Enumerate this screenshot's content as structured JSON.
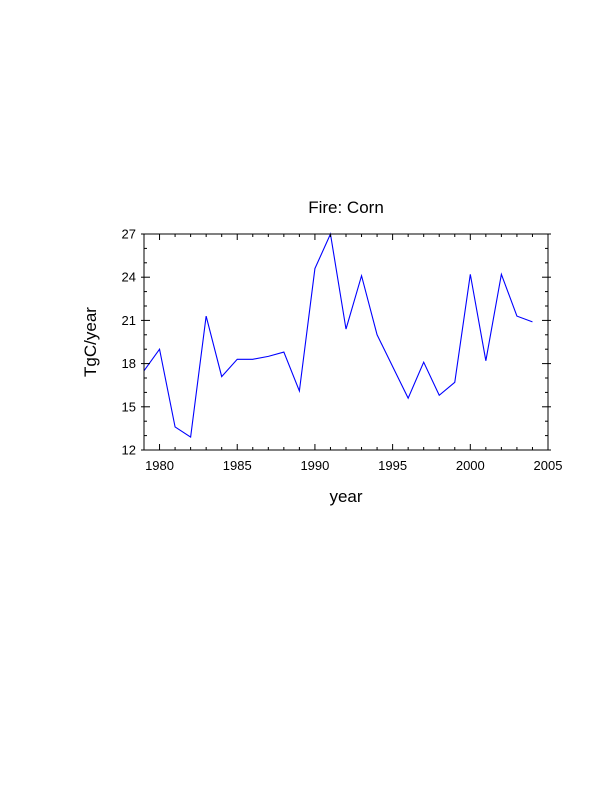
{
  "chart_data": {
    "type": "line",
    "title": "Fire: Corn",
    "xlabel": "year",
    "ylabel": "TgC/year",
    "xlim": [
      1979,
      2005
    ],
    "ylim": [
      12,
      27
    ],
    "x_ticks": [
      1980,
      1985,
      1990,
      1995,
      2000,
      2005
    ],
    "y_ticks": [
      12,
      15,
      18,
      21,
      24,
      27
    ],
    "grid": false,
    "series": [
      {
        "color": "#0000ff",
        "x": [
          1979,
          1980,
          1981,
          1982,
          1983,
          1984,
          1985,
          1986,
          1987,
          1988,
          1989,
          1990,
          1991,
          1992,
          1993,
          1994,
          1995,
          1996,
          1997,
          1998,
          1999,
          2000,
          2001,
          2002,
          2003,
          2004
        ],
        "values": [
          17.5,
          19.0,
          13.6,
          12.9,
          21.3,
          17.1,
          18.3,
          18.3,
          18.5,
          18.8,
          16.1,
          24.6,
          27.0,
          20.4,
          24.1,
          20.0,
          17.8,
          15.6,
          18.1,
          15.8,
          16.7,
          24.2,
          18.2,
          24.2,
          21.3,
          20.9
        ]
      }
    ]
  }
}
